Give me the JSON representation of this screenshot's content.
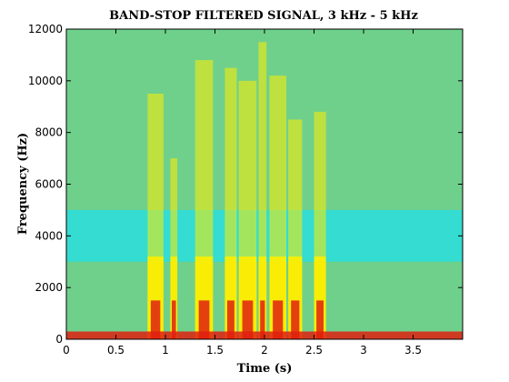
{
  "chart_data": {
    "type": "heatmap",
    "title": "BAND-STOP FILTERED SIGNAL, 3 kHz - 5 kHz",
    "xlabel": "Time (s)",
    "ylabel": "Frequency (Hz)",
    "xlim": [
      0,
      4.0
    ],
    "ylim": [
      0,
      12000
    ],
    "x_ticks": [
      0,
      0.5,
      1,
      1.5,
      2,
      2.5,
      3,
      3.5
    ],
    "x_tick_labels": [
      "0",
      "0.5",
      "1",
      "1.5",
      "2",
      "2.5",
      "3",
      "3.5"
    ],
    "y_ticks": [
      0,
      2000,
      4000,
      6000,
      8000,
      10000,
      12000
    ],
    "y_tick_labels": [
      "0",
      "2000",
      "4000",
      "6000",
      "8000",
      "10000",
      "12000"
    ],
    "colormap": "jet",
    "background_color": "#6fd08c",
    "stopband_hz": [
      3000,
      5000
    ],
    "stopband_color": "#20e0e8",
    "high_energy_color": "#ffee00",
    "peak_energy_color": "#e02010",
    "grid": false,
    "energy_bursts": [
      {
        "t_start": 0.82,
        "t_end": 0.98,
        "f_max": 9500
      },
      {
        "t_start": 1.05,
        "t_end": 1.12,
        "f_max": 7000
      },
      {
        "t_start": 1.3,
        "t_end": 1.48,
        "f_max": 10800
      },
      {
        "t_start": 1.6,
        "t_end": 1.72,
        "f_max": 10500
      },
      {
        "t_start": 1.74,
        "t_end": 1.92,
        "f_max": 10000
      },
      {
        "t_start": 1.94,
        "t_end": 2.02,
        "f_max": 11500
      },
      {
        "t_start": 2.05,
        "t_end": 2.22,
        "f_max": 10200
      },
      {
        "t_start": 2.24,
        "t_end": 2.38,
        "f_max": 8500
      },
      {
        "t_start": 2.5,
        "t_end": 2.62,
        "f_max": 8800
      }
    ]
  }
}
